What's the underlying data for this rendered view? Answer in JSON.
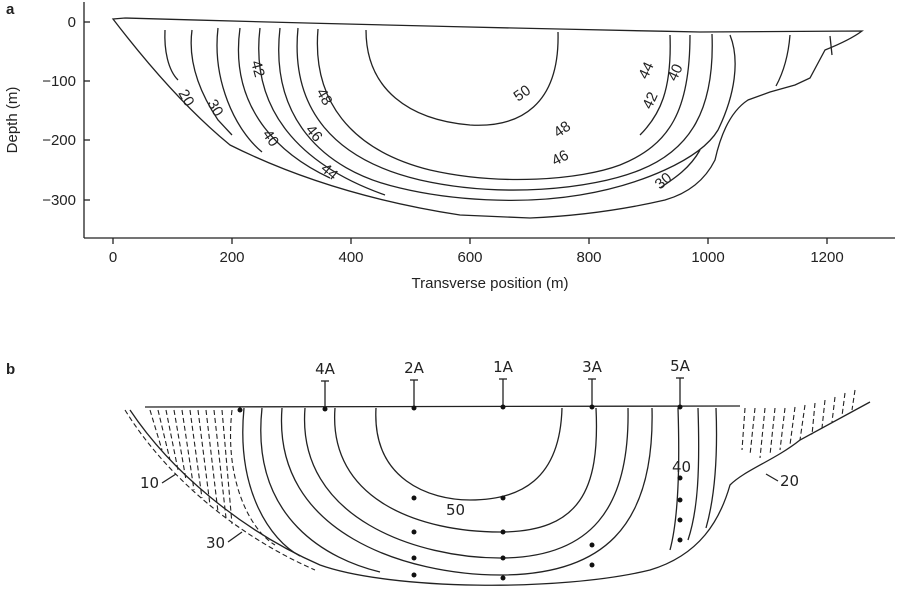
{
  "panel_a": {
    "label": "a",
    "xlabel": "Transverse position (m)",
    "ylabel": "Depth (m)",
    "x_ticks": [
      "0",
      "200",
      "400",
      "600",
      "800",
      "1000",
      "1200"
    ],
    "y_ticks": [
      "0",
      "−100",
      "−200",
      "−300"
    ],
    "contour_labels": {
      "l20": "20",
      "l30a": "30",
      "l42a": "42",
      "l40a": "40",
      "l48a": "48",
      "l46a": "46",
      "l44a": "44",
      "l50": "50",
      "l48b": "48",
      "l46b": "46",
      "l44b": "44",
      "l42b": "42",
      "l40b": "40",
      "l30b": "30"
    }
  },
  "panel_b": {
    "label": "b",
    "stations": [
      "4A",
      "2A",
      "1A",
      "3A",
      "5A"
    ],
    "contour_labels": {
      "l10": "10",
      "l30": "30",
      "l50": "50",
      "l40": "40",
      "l20": "20"
    }
  }
}
